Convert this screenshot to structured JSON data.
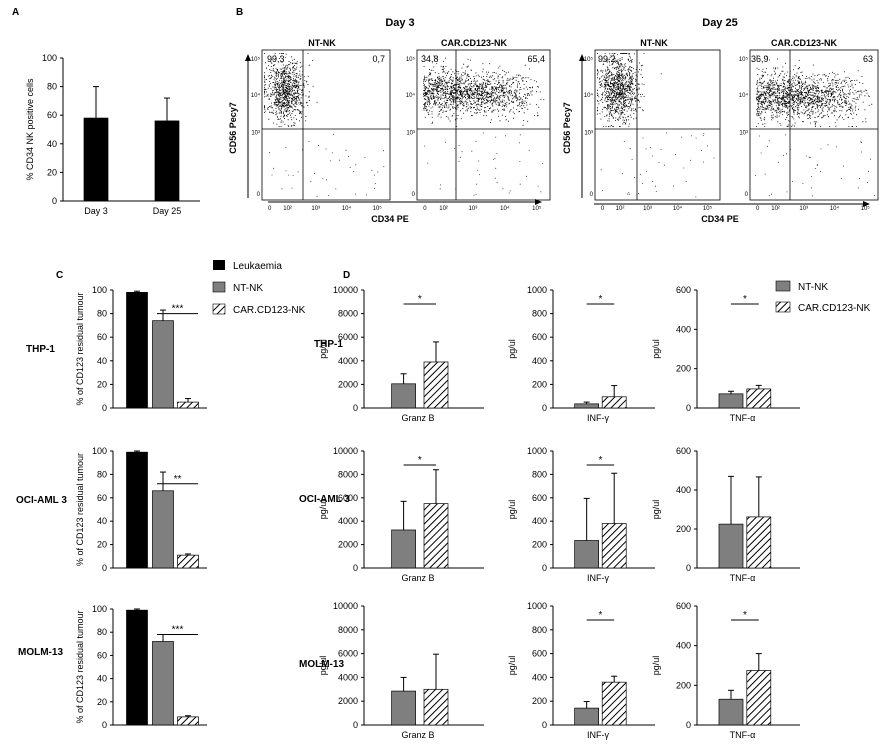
{
  "colors": {
    "leukaemia": "#000000",
    "nt": "#7f7f7f",
    "car_hatch": "#000000",
    "axis": "#000000"
  },
  "panels": {
    "A": "A",
    "B": "B",
    "C": "C",
    "D": "D"
  },
  "legend_c": {
    "items": [
      {
        "label": "Leukaemia",
        "style": "black"
      },
      {
        "label": "NT-NK",
        "style": "grey"
      },
      {
        "label": "CAR.CD123-NK",
        "style": "hatch"
      }
    ]
  },
  "legend_d": {
    "items": [
      {
        "label": "NT-NK",
        "style": "grey"
      },
      {
        "label": "CAR.CD123-NK",
        "style": "hatch"
      }
    ]
  },
  "rows": [
    "THP-1",
    "OCI-AML 3",
    "MOLM-13"
  ],
  "flow": {
    "day3_title": "Day 3",
    "day25_title": "Day 25",
    "y_label": "CD56 Pecy7",
    "x_label": "CD34 PE",
    "x_ticks": [
      "0",
      "10²",
      "10³",
      "10⁴",
      "10⁵"
    ],
    "y_ticks": [
      "10⁵",
      "10⁴",
      "10³",
      "0"
    ],
    "plots": [
      {
        "name": "NT-NK",
        "q_ul": "99,3",
        "q_ur": "0,7"
      },
      {
        "name": "CAR.CD123-NK",
        "q_ul": "34,8",
        "q_ur": "65,4"
      },
      {
        "name": "NT-NK",
        "q_ul": "99,2",
        "q_ur": ""
      },
      {
        "name": "CAR.CD123-NK",
        "q_ul": "36,9",
        "q_ur": "63"
      }
    ]
  },
  "chart_data": [
    {
      "id": "A",
      "type": "bar",
      "categories": [
        "Day 3",
        "Day 25"
      ],
      "values": [
        58,
        56
      ],
      "errors": [
        22,
        16
      ],
      "ylabel": "% CD34 NK positive cells",
      "ylim": [
        0,
        100
      ],
      "yticks": [
        0,
        20,
        40,
        60,
        80,
        100
      ]
    },
    {
      "id": "C-THP-1",
      "type": "bar",
      "row": "THP-1",
      "categories": [
        "Leukaemia",
        "NT-NK",
        "CAR.CD123-NK"
      ],
      "values": [
        98,
        74,
        5
      ],
      "errors": [
        1,
        9,
        3
      ],
      "ylabel": "% of CD123 residual tumour",
      "ylim": [
        0,
        100
      ],
      "yticks": [
        0,
        20,
        40,
        60,
        80,
        100
      ],
      "significance": "***"
    },
    {
      "id": "C-OCI-AML 3",
      "type": "bar",
      "row": "OCI-AML 3",
      "categories": [
        "Leukaemia",
        "NT-NK",
        "CAR.CD123-NK"
      ],
      "values": [
        99,
        66,
        11
      ],
      "errors": [
        1,
        16,
        1
      ],
      "ylabel": "% of CD123 residual tumour",
      "ylim": [
        0,
        100
      ],
      "yticks": [
        0,
        20,
        40,
        60,
        80,
        100
      ],
      "significance": "**"
    },
    {
      "id": "C-MOLM-13",
      "type": "bar",
      "row": "MOLM-13",
      "categories": [
        "Leukaemia",
        "NT-NK",
        "CAR.CD123-NK"
      ],
      "values": [
        99,
        72,
        7
      ],
      "errors": [
        1,
        6,
        1
      ],
      "ylabel": "% of CD123 residual tumour",
      "ylim": [
        0,
        100
      ],
      "yticks": [
        0,
        20,
        40,
        60,
        80,
        100
      ],
      "significance": "***"
    },
    {
      "id": "D-THP-1-GranzB",
      "type": "bar",
      "row": "THP-1",
      "categories": [
        "NT-NK",
        "CAR.CD123-NK"
      ],
      "values": [
        2050,
        3900
      ],
      "errors": [
        850,
        1700
      ],
      "xlabel": "Granz B",
      "ylabel": "pg/ul",
      "ylim": [
        0,
        10000
      ],
      "yticks": [
        0,
        2000,
        4000,
        6000,
        8000,
        10000
      ],
      "significance": "*"
    },
    {
      "id": "D-THP-1-INF",
      "type": "bar",
      "row": "THP-1",
      "categories": [
        "NT-NK",
        "CAR.CD123-NK"
      ],
      "values": [
        35,
        95
      ],
      "errors": [
        15,
        95
      ],
      "xlabel": "INF-γ",
      "ylabel": "pg/ul",
      "ylim": [
        0,
        1000
      ],
      "yticks": [
        0,
        200,
        400,
        600,
        800,
        1000
      ],
      "significance": "*"
    },
    {
      "id": "D-THP-1-TNF",
      "type": "bar",
      "row": "THP-1",
      "categories": [
        "NT-NK",
        "CAR.CD123-NK"
      ],
      "values": [
        72,
        97
      ],
      "errors": [
        13,
        18
      ],
      "xlabel": "TNF-α",
      "ylabel": "pg/ul",
      "ylim": [
        0,
        600
      ],
      "yticks": [
        0,
        200,
        400,
        600
      ],
      "significance": "*"
    },
    {
      "id": "D-OCI-AML 3-GranzB",
      "type": "bar",
      "row": "OCI-AML 3",
      "categories": [
        "NT-NK",
        "CAR.CD123-NK"
      ],
      "values": [
        3250,
        5500
      ],
      "errors": [
        2450,
        2900
      ],
      "xlabel": "Granz B",
      "ylabel": "pg/ul",
      "ylim": [
        0,
        10000
      ],
      "yticks": [
        0,
        2000,
        4000,
        6000,
        8000,
        10000
      ],
      "significance": "*"
    },
    {
      "id": "D-OCI-AML 3-INF",
      "type": "bar",
      "row": "OCI-AML 3",
      "categories": [
        "NT-NK",
        "CAR.CD123-NK"
      ],
      "values": [
        235,
        380
      ],
      "errors": [
        360,
        430
      ],
      "xlabel": "INF-γ",
      "ylabel": "pg/ul",
      "ylim": [
        0,
        1000
      ],
      "yticks": [
        0,
        200,
        400,
        600,
        800,
        1000
      ],
      "significance": "*"
    },
    {
      "id": "D-OCI-AML 3-TNF",
      "type": "bar",
      "row": "OCI-AML 3",
      "categories": [
        "NT-NK",
        "CAR.CD123-NK"
      ],
      "values": [
        225,
        262
      ],
      "errors": [
        245,
        205
      ],
      "xlabel": "TNF-α",
      "ylabel": "pg/ul",
      "ylim": [
        0,
        600
      ],
      "yticks": [
        0,
        200,
        400,
        600
      ],
      "significance": ""
    },
    {
      "id": "D-MOLM-13-GranzB",
      "type": "bar",
      "row": "MOLM-13",
      "categories": [
        "NT-NK",
        "CAR.CD123-NK"
      ],
      "values": [
        2850,
        3000
      ],
      "errors": [
        1150,
        2950
      ],
      "xlabel": "Granz B",
      "ylabel": "pg/ul",
      "ylim": [
        0,
        10000
      ],
      "yticks": [
        0,
        2000,
        4000,
        6000,
        8000,
        10000
      ],
      "significance": ""
    },
    {
      "id": "D-MOLM-13-INF",
      "type": "bar",
      "row": "MOLM-13",
      "categories": [
        "NT-NK",
        "CAR.CD123-NK"
      ],
      "values": [
        142,
        360
      ],
      "errors": [
        55,
        50
      ],
      "xlabel": "INF-γ",
      "ylabel": "pg/ul",
      "ylim": [
        0,
        1000
      ],
      "yticks": [
        0,
        200,
        400,
        600,
        800,
        1000
      ],
      "significance": "*"
    },
    {
      "id": "D-MOLM-13-TNF",
      "type": "bar",
      "row": "MOLM-13",
      "categories": [
        "NT-NK",
        "CAR.CD123-NK"
      ],
      "values": [
        130,
        275
      ],
      "errors": [
        45,
        85
      ],
      "xlabel": "TNF-α",
      "ylabel": "pg/ul",
      "ylim": [
        0,
        600
      ],
      "yticks": [
        0,
        200,
        400,
        600
      ],
      "significance": "*"
    }
  ]
}
